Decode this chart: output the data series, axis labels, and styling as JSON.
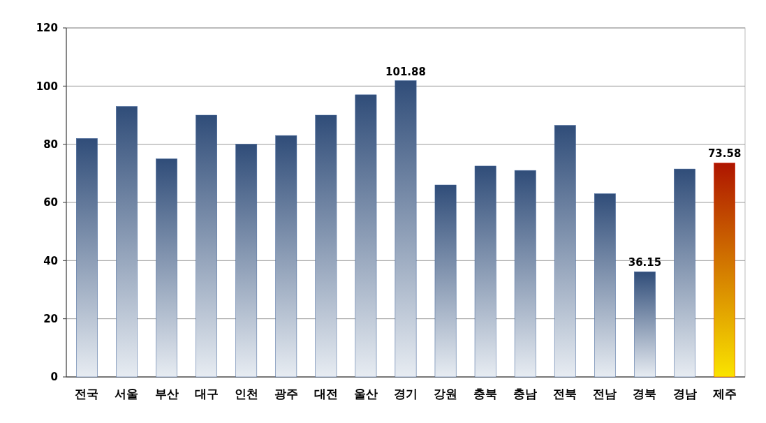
{
  "chart_data": {
    "type": "bar",
    "categories": [
      "전국",
      "서울",
      "부산",
      "대구",
      "인천",
      "광주",
      "대전",
      "울산",
      "경기",
      "강원",
      "충북",
      "충남",
      "전북",
      "전남",
      "경북",
      "경남",
      "제주"
    ],
    "values": [
      82,
      93,
      75,
      90,
      80,
      83,
      90,
      97,
      101.88,
      66,
      72.5,
      71,
      86.5,
      63,
      36.15,
      71.5,
      73.58
    ],
    "colors": [
      "#3b5f96",
      "#3b5f96",
      "#3b5f96",
      "#3b5f96",
      "#3b5f96",
      "#3b5f96",
      "#3b5f96",
      "#3b5f96",
      "#3b5f96",
      "#3b5f96",
      "#3b5f96",
      "#3b5f96",
      "#3b5f96",
      "#3b5f96",
      "#3b5f96",
      "#3b5f96",
      "#d81a00"
    ],
    "value_labels": [
      null,
      null,
      null,
      null,
      null,
      null,
      null,
      null,
      "101.88",
      null,
      null,
      null,
      null,
      null,
      "36.15",
      null,
      "73.58"
    ],
    "ylim": [
      0,
      120
    ],
    "yticks": [
      0,
      20,
      40,
      60,
      80,
      100,
      120
    ],
    "grid": "y"
  }
}
